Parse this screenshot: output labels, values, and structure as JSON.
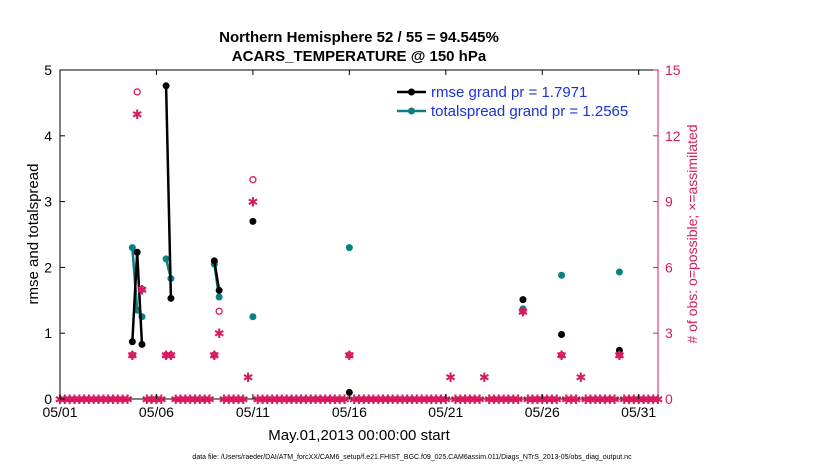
{
  "chart_data": {
    "type": "line",
    "title_line1": "Northern Hemisphere 52 / 55 = 94.545%",
    "title_line2": "ACARS_TEMPERATURE @ 150 hPa",
    "xlabel": "May.01,2013 00:00:00 start",
    "ylabel_left": "rmse and totalspread",
    "ylabel_right": "# of obs: o=possible; ×=assimilated",
    "footer": "data file: /Users/raeder/DAI/ATM_forcXX/CAM6_setup/f.e21.FHIST_BGC.f09_025.CAM6assim.011/Diags_NTrS_2013-05/obs_diag_output.nc",
    "xlim": [
      1,
      32
    ],
    "ylim_left": [
      0,
      5
    ],
    "ylim_right": [
      0,
      15
    ],
    "x_tick_values": [
      1,
      6,
      11,
      16,
      21,
      26,
      31
    ],
    "x_tick_labels": [
      "05/01",
      "05/06",
      "05/11",
      "05/16",
      "05/21",
      "05/26",
      "05/31"
    ],
    "y_left_ticks": [
      0,
      1,
      2,
      3,
      4,
      5
    ],
    "y_right_ticks": [
      0,
      3,
      6,
      9,
      12,
      15
    ],
    "colors": {
      "rmse": "#000000",
      "totalspread": "#0a8080",
      "obs": "#d81b60",
      "legend_text": "#1a33d6"
    },
    "series": [
      {
        "name": "rmse",
        "legend": "rmse grand pr = 1.7971",
        "segments": [
          [
            [
              4.75,
              0.87
            ],
            [
              5.0,
              2.23
            ],
            [
              5.25,
              0.83
            ]
          ],
          [
            [
              6.5,
              4.76
            ],
            [
              6.75,
              1.53
            ]
          ],
          [
            [
              9.0,
              2.1
            ],
            [
              9.25,
              1.65
            ]
          ],
          [
            [
              11.0,
              2.7
            ]
          ],
          [
            [
              16.0,
              0.1
            ]
          ],
          [
            [
              25.0,
              1.51
            ]
          ],
          [
            [
              27.0,
              0.98
            ]
          ],
          [
            [
              30.0,
              0.74
            ]
          ]
        ]
      },
      {
        "name": "totalspread",
        "legend": "totalspread grand pr = 1.2565",
        "segments": [
          [
            [
              4.75,
              2.3
            ],
            [
              5.0,
              1.35
            ],
            [
              5.25,
              1.25
            ]
          ],
          [
            [
              6.5,
              2.13
            ],
            [
              6.75,
              1.83
            ]
          ],
          [
            [
              9.0,
              2.05
            ],
            [
              9.25,
              1.55
            ]
          ],
          [
            [
              11.0,
              1.25
            ]
          ],
          [
            [
              16.0,
              2.3
            ]
          ],
          [
            [
              25.0,
              1.37
            ]
          ],
          [
            [
              27.0,
              1.88
            ]
          ],
          [
            [
              30.0,
              1.93
            ]
          ]
        ]
      }
    ],
    "obs_possible": [
      [
        4.75,
        2
      ],
      [
        5.0,
        14
      ],
      [
        5.25,
        5
      ],
      [
        6.5,
        2
      ],
      [
        6.75,
        2
      ],
      [
        9.0,
        2
      ],
      [
        9.25,
        4
      ],
      [
        11.0,
        10
      ],
      [
        16.0,
        2
      ],
      [
        25.0,
        4
      ],
      [
        27.0,
        2
      ],
      [
        30.0,
        2
      ]
    ],
    "obs_assimilated": [
      [
        4.75,
        2
      ],
      [
        5.0,
        13
      ],
      [
        5.25,
        5
      ],
      [
        6.5,
        2
      ],
      [
        6.75,
        2
      ],
      [
        9.0,
        2
      ],
      [
        9.25,
        3
      ],
      [
        10.75,
        1
      ],
      [
        11.0,
        9
      ],
      [
        16.0,
        2
      ],
      [
        21.25,
        1
      ],
      [
        23.0,
        1
      ],
      [
        25.0,
        4
      ],
      [
        27.0,
        2
      ],
      [
        28.0,
        1
      ],
      [
        30.0,
        2
      ]
    ]
  }
}
